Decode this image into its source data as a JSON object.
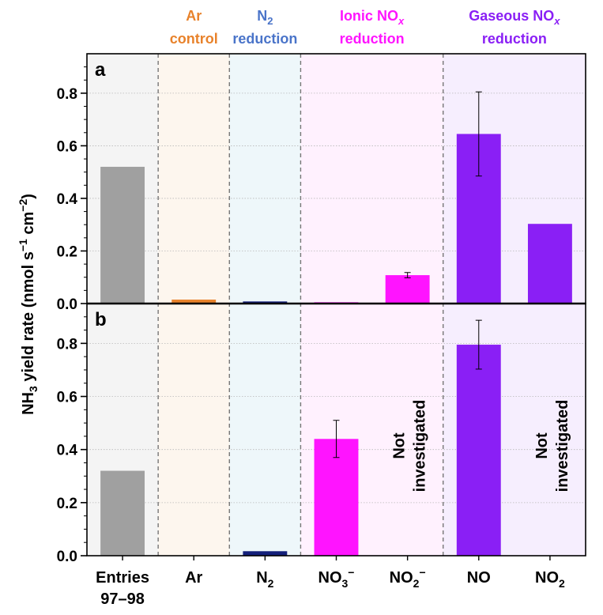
{
  "chart_data": {
    "type": "bar",
    "ylabel": {
      "pre": "NH",
      "sub": "3",
      "mid": " yield rate (nmol s",
      "sup1": "−1",
      "mid2": " cm",
      "sup2": "−2",
      "post": ")"
    },
    "ylim": [
      0,
      0.95
    ],
    "yticks": [
      "0.0",
      "0.2",
      "0.4",
      "0.6",
      "0.8"
    ],
    "x_labels": [
      {
        "main": "Entries",
        "line2": "97–98"
      },
      {
        "main": "Ar"
      },
      {
        "main": "N",
        "sub": "2"
      },
      {
        "main": "NO",
        "sub": "3",
        "sup": "−"
      },
      {
        "main": "NO",
        "sub": "2",
        "sup": "−"
      },
      {
        "main": "NO"
      },
      {
        "main": "NO",
        "sub": "2"
      }
    ],
    "group_headers": [
      {
        "line1": "Ar",
        "line2": "control",
        "color": "#e8822b"
      },
      {
        "line1": "N",
        "line1_sub": "2",
        "line2": "reduction",
        "color": "#4a74c9"
      },
      {
        "line1": "Ionic NO",
        "line1_sub": "x",
        "line2": "reduction",
        "color": "#ff14ff"
      },
      {
        "line1": "Gaseous NO",
        "line1_sub": "x",
        "line2": "reduction",
        "color": "#8a1ff5"
      }
    ],
    "bg_colors": [
      "#f4f4f4",
      "#fdf6ee",
      "#eef7fa",
      "#fff1fe",
      "#fff1fe",
      "#f6eefe",
      "#f6eefe"
    ],
    "bar_colors": [
      "#a0a0a0",
      "#e8822b",
      "#14207a",
      "#ff14ff",
      "#ff14ff",
      "#8a1ff5",
      "#8a1ff5"
    ],
    "panels": [
      {
        "label": "a",
        "values": [
          0.52,
          0.015,
          0.008,
          0.005,
          0.108,
          0.645,
          0.303
        ],
        "errors": [
          null,
          null,
          null,
          null,
          0.01,
          0.16,
          null
        ],
        "not_investigated": []
      },
      {
        "label": "b",
        "values": [
          0.32,
          null,
          0.017,
          0.44,
          null,
          0.795,
          null
        ],
        "errors": [
          null,
          null,
          null,
          0.07,
          null,
          0.092,
          null
        ],
        "not_investigated": [
          4,
          6
        ]
      }
    ],
    "not_investigated_label": {
      "line1": "Not",
      "line2": "investigated"
    }
  }
}
